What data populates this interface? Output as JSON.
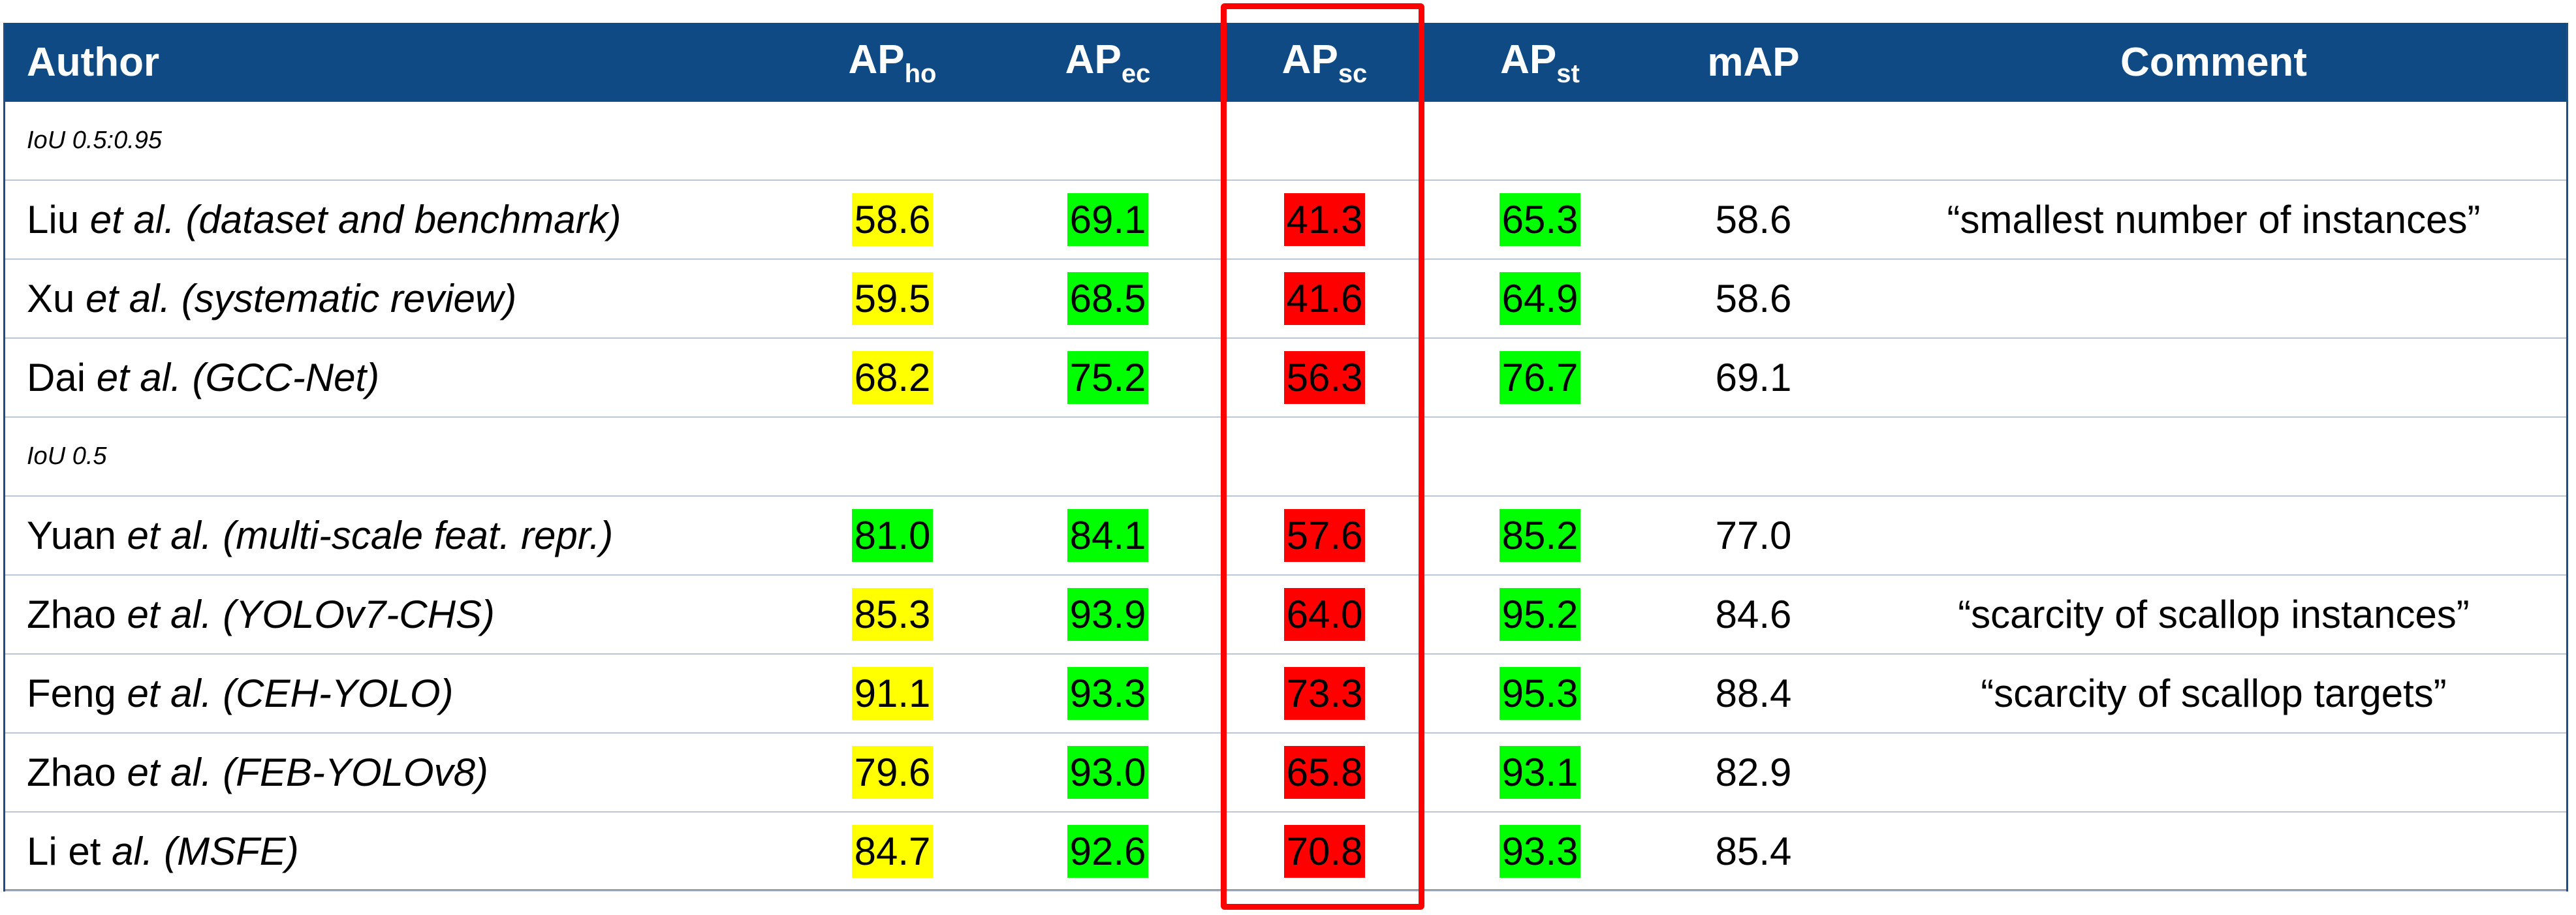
{
  "header": {
    "columns": [
      {
        "text": "Author"
      },
      {
        "text": "AP",
        "sub": "ho"
      },
      {
        "text": "AP",
        "sub": "ec"
      },
      {
        "text": "AP",
        "sub": "sc"
      },
      {
        "text": "AP",
        "sub": "st"
      },
      {
        "text": "mAP"
      },
      {
        "text": "Comment"
      }
    ]
  },
  "sections": [
    {
      "label": "IoU 0.5:0.95",
      "rows": [
        {
          "author": {
            "name": "Liu",
            "etal": "et al.",
            "note": "(dataset and benchmark)"
          },
          "cells": [
            {
              "value": "58.6",
              "color": "#ffff00"
            },
            {
              "value": "69.1",
              "color": "#00ff00"
            },
            {
              "value": "41.3",
              "color": "#ff0000"
            },
            {
              "value": "65.3",
              "color": "#00ff00"
            }
          ],
          "map": "58.6",
          "comment": "“smallest number of instances”"
        },
        {
          "author": {
            "name": "Xu",
            "etal": "et al.",
            "note": "(systematic review)"
          },
          "cells": [
            {
              "value": "59.5",
              "color": "#ffff00"
            },
            {
              "value": "68.5",
              "color": "#00ff00"
            },
            {
              "value": "41.6",
              "color": "#ff0000"
            },
            {
              "value": "64.9",
              "color": "#00ff00"
            }
          ],
          "map": "58.6"
        },
        {
          "author": {
            "name": "Dai",
            "etal": "et al.",
            "note": "(GCC-Net)"
          },
          "cells": [
            {
              "value": "68.2",
              "color": "#ffff00"
            },
            {
              "value": "75.2",
              "color": "#00ff00"
            },
            {
              "value": "56.3",
              "color": "#ff0000"
            },
            {
              "value": "76.7",
              "color": "#00ff00"
            }
          ],
          "map": "69.1"
        }
      ]
    },
    {
      "label": "IoU 0.5",
      "rows": [
        {
          "author": {
            "name": "Yuan",
            "etal": "et al.",
            "note": "(multi-scale feat. repr.)"
          },
          "cells": [
            {
              "value": "81.0",
              "color": "#00ff00"
            },
            {
              "value": "84.1",
              "color": "#00ff00"
            },
            {
              "value": "57.6",
              "color": "#ff0000"
            },
            {
              "value": "85.2",
              "color": "#00ff00"
            }
          ],
          "map": "77.0"
        },
        {
          "author": {
            "name": "Zhao",
            "etal": "et al.",
            "note": "(YOLOv7-CHS)"
          },
          "cells": [
            {
              "value": "85.3",
              "color": "#ffff00"
            },
            {
              "value": "93.9",
              "color": "#00ff00"
            },
            {
              "value": "64.0",
              "color": "#ff0000"
            },
            {
              "value": "95.2",
              "color": "#00ff00"
            }
          ],
          "map": "84.6",
          "comment": "“scarcity of scallop instances”"
        },
        {
          "author": {
            "name": "Feng",
            "etal": "et al.",
            "note": "(CEH-YOLO)"
          },
          "cells": [
            {
              "value": "91.1",
              "color": "#ffff00"
            },
            {
              "value": "93.3",
              "color": "#00ff00"
            },
            {
              "value": "73.3",
              "color": "#ff0000"
            },
            {
              "value": "95.3",
              "color": "#00ff00"
            }
          ],
          "map": "88.4",
          "comment": "“scarcity of scallop targets”"
        },
        {
          "author": {
            "name": "Zhao",
            "etal": "et al.",
            "note": "(FEB-YOLOv8)"
          },
          "cells": [
            {
              "value": "79.6",
              "color": "#ffff00"
            },
            {
              "value": "93.0",
              "color": "#00ff00"
            },
            {
              "value": "65.8",
              "color": "#ff0000"
            },
            {
              "value": "93.1",
              "color": "#00ff00"
            }
          ],
          "map": "82.9"
        },
        {
          "author": {
            "name": "Li et",
            "etal": "al.",
            "note": "(MSFE)"
          },
          "cells": [
            {
              "value": "84.7",
              "color": "#ffff00"
            },
            {
              "value": "92.6",
              "color": "#00ff00"
            },
            {
              "value": "70.8",
              "color": "#ff0000"
            },
            {
              "value": "93.3",
              "color": "#00ff00"
            }
          ],
          "map": "85.4"
        }
      ]
    }
  ]
}
